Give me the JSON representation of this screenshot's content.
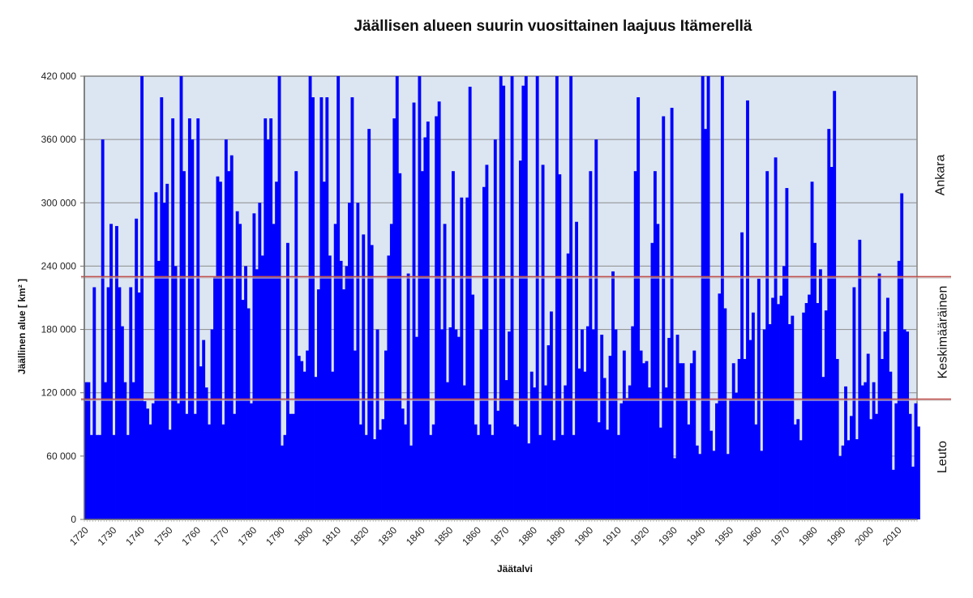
{
  "chart_data": {
    "type": "bar",
    "title": "Jäällisen alueen suurin vuosittainen laajuus Itämerellä",
    "xlabel": "Jäätalvi",
    "ylabel": "Jäällinen alue [ km² ]",
    "ylim": [
      0,
      420000
    ],
    "yticks": [
      0,
      60000,
      120000,
      180000,
      240000,
      300000,
      360000,
      420000
    ],
    "ytick_labels": [
      "0",
      "60 000",
      "120 000",
      "180 000",
      "240 000",
      "300 000",
      "360 000",
      "420 000"
    ],
    "xtick_labels": [
      "1720",
      "1730",
      "1740",
      "1750",
      "1760",
      "1770",
      "1780",
      "1790",
      "1800",
      "1810",
      "1820",
      "1830",
      "1840",
      "1850",
      "1860",
      "1870",
      "1880",
      "1890",
      "1900",
      "1910",
      "1920",
      "1930",
      "1940",
      "1950",
      "1960",
      "1970",
      "1980",
      "1990",
      "2000",
      "2010"
    ],
    "x_start": 1720,
    "x_end": 2016,
    "grid": true,
    "bar_color": "#0000ff",
    "plot_background": "#dce6f2",
    "thresholds": [
      {
        "value": 230000,
        "color": "#c0504d"
      },
      {
        "value": 114000,
        "color": "#c0504d"
      }
    ],
    "zones": [
      {
        "label": "Ankara",
        "from": 230000,
        "to": 420000
      },
      {
        "label": "Keskimääräinen",
        "from": 114000,
        "to": 230000
      },
      {
        "label": "Leuto",
        "from": 0,
        "to": 114000
      }
    ],
    "values": [
      130000,
      130000,
      80000,
      220000,
      80000,
      80000,
      360000,
      130000,
      220000,
      280000,
      80000,
      278000,
      220000,
      183000,
      130000,
      80000,
      220000,
      130000,
      285000,
      215000,
      420000,
      112000,
      105000,
      90000,
      110000,
      310000,
      245000,
      400000,
      300000,
      318000,
      85000,
      380000,
      240000,
      110000,
      420000,
      330000,
      100000,
      380000,
      360000,
      100000,
      380000,
      145000,
      170000,
      125000,
      90000,
      180000,
      230000,
      325000,
      320000,
      90000,
      360000,
      330000,
      345000,
      100000,
      292000,
      280000,
      208000,
      240000,
      200000,
      110000,
      290000,
      237000,
      300000,
      250000,
      380000,
      360000,
      380000,
      280000,
      320000,
      420000,
      70000,
      80000,
      262000,
      100000,
      100000,
      330000,
      155000,
      150000,
      140000,
      160000,
      420000,
      400000,
      135000,
      218000,
      400000,
      320000,
      400000,
      250000,
      140000,
      280000,
      420000,
      245000,
      218000,
      240000,
      300000,
      400000,
      160000,
      300000,
      90000,
      270000,
      80000,
      370000,
      260000,
      76000,
      180000,
      85000,
      95000,
      160000,
      250000,
      280000,
      380000,
      420000,
      328000,
      105000,
      90000,
      233000,
      70000,
      395000,
      173000,
      420000,
      330000,
      362000,
      377000,
      80000,
      90000,
      382000,
      396000,
      180000,
      280000,
      130000,
      182000,
      330000,
      180000,
      173000,
      305000,
      127000,
      305000,
      410000,
      213000,
      90000,
      80000,
      180000,
      315000,
      336000,
      90000,
      80000,
      360000,
      103000,
      420000,
      411000,
      132000,
      178000,
      420000,
      90000,
      88000,
      340000,
      411000,
      420000,
      72000,
      140000,
      125000,
      420000,
      80000,
      336000,
      127000,
      165000,
      197000,
      75000,
      420000,
      327000,
      80000,
      127000,
      252000,
      420000,
      80000,
      282000,
      143000,
      180000,
      140000,
      183000,
      330000,
      180000,
      360000,
      92000,
      175000,
      134000,
      85000,
      155000,
      235000,
      180000,
      80000,
      110000,
      160000,
      115000,
      127000,
      183000,
      330000,
      400000,
      160000,
      148000,
      150000,
      125000,
      262000,
      330000,
      280000,
      87000,
      382000,
      125000,
      172000,
      390000,
      58000,
      175000,
      148000,
      148000,
      114000,
      90000,
      148000,
      160000,
      70000,
      62000,
      420000,
      370000,
      420000,
      84000,
      65000,
      110000,
      214000,
      420000,
      200000,
      62000,
      114000,
      148000,
      120000,
      152000,
      272000,
      152000,
      397000,
      170000,
      196000,
      90000,
      228000,
      65000,
      180000,
      330000,
      185000,
      210000,
      343000,
      204000,
      212000,
      240000,
      314000,
      185000,
      193000,
      90000,
      95000,
      75000,
      196000,
      205000,
      213000,
      320000,
      262000,
      205000,
      237000,
      135000,
      198000,
      370000,
      334000,
      406000,
      152000,
      60000,
      70000,
      126000,
      75000,
      98000,
      220000,
      76000,
      265000,
      127000,
      130000,
      157000,
      95000,
      130000,
      100000,
      233000,
      152000,
      178000,
      210000,
      140000,
      47000,
      110000,
      245000,
      309000,
      180000,
      178000,
      100000,
      50000,
      110000,
      88000
    ]
  }
}
